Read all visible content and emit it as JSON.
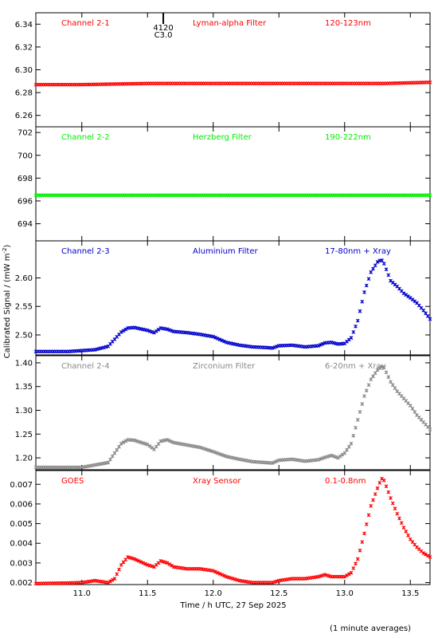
{
  "chart_data": [
    {
      "type": "scatter",
      "color": "#ff0000",
      "ylim": [
        6.25,
        6.35
      ],
      "yticks": [
        6.26,
        6.28,
        6.3,
        6.32,
        6.34
      ],
      "ytick_labels": [
        "6.26",
        "6.28",
        "6.30",
        "6.32",
        "6.34"
      ],
      "labels": [
        "Channel 2-1",
        "Lyman-alpha Filter",
        "120-123nm"
      ],
      "marker": {
        "x": 11.62,
        "lines": [
          "4120",
          "C3.0"
        ]
      },
      "series": [
        {
          "x": [
            10.65,
            11.0,
            11.5,
            12.0,
            12.5,
            13.0,
            13.3,
            13.65
          ],
          "y": [
            6.287,
            6.287,
            6.288,
            6.288,
            6.288,
            6.288,
            6.288,
            6.289
          ]
        }
      ]
    },
    {
      "type": "scatter",
      "color": "#00ee00",
      "ylim": [
        692.5,
        702.5
      ],
      "yticks": [
        694,
        696,
        698,
        700,
        702
      ],
      "ytick_labels": [
        "694",
        "696",
        "698",
        "700",
        "702"
      ],
      "labels": [
        "Channel 2-2",
        "Herzberg Filter",
        "190-222nm"
      ],
      "series": [
        {
          "x": [
            10.65,
            11.0,
            11.5,
            12.0,
            12.5,
            13.0,
            13.3,
            13.65
          ],
          "y": [
            696.5,
            696.5,
            696.5,
            696.5,
            696.5,
            696.5,
            696.5,
            696.5
          ]
        }
      ]
    },
    {
      "type": "scatter",
      "color": "#0000cc",
      "ylim": [
        2.465,
        2.665
      ],
      "yticks": [
        2.5,
        2.55,
        2.6
      ],
      "ytick_labels": [
        "2.50",
        "2.55",
        "2.60"
      ],
      "labels": [
        "Channel 2-3",
        "Aluminium Filter",
        "17-80nm + Xray"
      ],
      "series": [
        {
          "x": [
            10.65,
            10.9,
            11.1,
            11.2,
            11.3,
            11.35,
            11.4,
            11.5,
            11.55,
            11.6,
            11.65,
            11.7,
            11.8,
            11.9,
            12.0,
            12.1,
            12.2,
            12.3,
            12.4,
            12.45,
            12.5,
            12.6,
            12.7,
            12.8,
            12.85,
            12.9,
            12.95,
            13.0,
            13.05,
            13.1,
            13.15,
            13.2,
            13.25,
            13.28,
            13.3,
            13.35,
            13.4,
            13.45,
            13.5,
            13.55,
            13.6,
            13.65
          ],
          "y": [
            2.471,
            2.471,
            2.474,
            2.48,
            2.505,
            2.512,
            2.513,
            2.508,
            2.504,
            2.512,
            2.51,
            2.506,
            2.504,
            2.501,
            2.497,
            2.487,
            2.482,
            2.479,
            2.478,
            2.477,
            2.481,
            2.482,
            2.479,
            2.481,
            2.486,
            2.487,
            2.484,
            2.485,
            2.495,
            2.525,
            2.575,
            2.61,
            2.628,
            2.632,
            2.625,
            2.595,
            2.585,
            2.573,
            2.565,
            2.556,
            2.543,
            2.528
          ]
        }
      ]
    },
    {
      "type": "scatter",
      "color": "#888888",
      "ylim": [
        1.175,
        1.415
      ],
      "yticks": [
        1.2,
        1.25,
        1.3,
        1.35,
        1.4
      ],
      "ytick_labels": [
        "1.20",
        "1.25",
        "1.30",
        "1.35",
        "1.40"
      ],
      "labels": [
        "Channel 2-4",
        "Zirconium Filter",
        "6-20nm + Xray"
      ],
      "series": [
        {
          "x": [
            10.65,
            10.9,
            11.0,
            11.1,
            11.2,
            11.3,
            11.35,
            11.4,
            11.5,
            11.55,
            11.6,
            11.65,
            11.7,
            11.8,
            11.9,
            12.0,
            12.1,
            12.2,
            12.3,
            12.4,
            12.45,
            12.5,
            12.6,
            12.7,
            12.8,
            12.85,
            12.9,
            12.95,
            13.0,
            13.05,
            13.1,
            13.15,
            13.2,
            13.25,
            13.28,
            13.3,
            13.35,
            13.4,
            13.45,
            13.5,
            13.55,
            13.6,
            13.65
          ],
          "y": [
            1.18,
            1.18,
            1.18,
            1.185,
            1.19,
            1.23,
            1.238,
            1.237,
            1.228,
            1.218,
            1.235,
            1.238,
            1.232,
            1.227,
            1.222,
            1.213,
            1.203,
            1.197,
            1.192,
            1.19,
            1.189,
            1.195,
            1.197,
            1.193,
            1.196,
            1.201,
            1.205,
            1.2,
            1.21,
            1.23,
            1.28,
            1.33,
            1.365,
            1.385,
            1.392,
            1.39,
            1.36,
            1.34,
            1.325,
            1.31,
            1.29,
            1.275,
            1.26
          ]
        }
      ]
    },
    {
      "type": "scatter",
      "color": "#ff0000",
      "ylim": [
        0.0019,
        0.0077
      ],
      "yticks": [
        0.002,
        0.003,
        0.004,
        0.005,
        0.006,
        0.007
      ],
      "ytick_labels": [
        "0.002",
        "0.003",
        "0.004",
        "0.005",
        "0.006",
        "0.007"
      ],
      "labels": [
        "GOES",
        "Xray Sensor",
        "0.1-0.8nm"
      ],
      "series": [
        {
          "x": [
            10.65,
            10.9,
            11.0,
            11.1,
            11.2,
            11.25,
            11.3,
            11.35,
            11.4,
            11.5,
            11.55,
            11.6,
            11.65,
            11.7,
            11.8,
            11.9,
            12.0,
            12.1,
            12.2,
            12.3,
            12.4,
            12.45,
            12.5,
            12.6,
            12.7,
            12.8,
            12.85,
            12.9,
            12.95,
            13.0,
            13.05,
            13.1,
            13.15,
            13.2,
            13.25,
            13.28,
            13.3,
            13.35,
            13.4,
            13.45,
            13.5,
            13.55,
            13.6,
            13.65
          ],
          "y": [
            0.00195,
            0.00198,
            0.002,
            0.0021,
            0.002,
            0.0022,
            0.0029,
            0.0033,
            0.0032,
            0.0029,
            0.0028,
            0.0031,
            0.003,
            0.0028,
            0.0027,
            0.0027,
            0.0026,
            0.0023,
            0.0021,
            0.002,
            0.002,
            0.002,
            0.0021,
            0.0022,
            0.0022,
            0.0023,
            0.0024,
            0.0023,
            0.0023,
            0.0023,
            0.0025,
            0.0032,
            0.0045,
            0.0059,
            0.0068,
            0.0073,
            0.0072,
            0.0063,
            0.0055,
            0.0048,
            0.0042,
            0.0038,
            0.0035,
            0.0033
          ]
        }
      ]
    }
  ],
  "x_axis": {
    "xlim": [
      10.65,
      13.65
    ],
    "ticks": [
      11.0,
      11.5,
      12.0,
      12.5,
      13.0,
      13.5
    ],
    "tick_labels": [
      "11.0",
      "11.5",
      "12.0",
      "12.5",
      "13.0",
      "13.5"
    ],
    "xlabel": "Time / h UTC, 27 Sep 2025"
  },
  "ylabel": "Calibrated Signal / (mW m",
  "ylabel_exponent": "-2",
  "ylabel_close": ")",
  "footnote": "(1 minute averages)"
}
